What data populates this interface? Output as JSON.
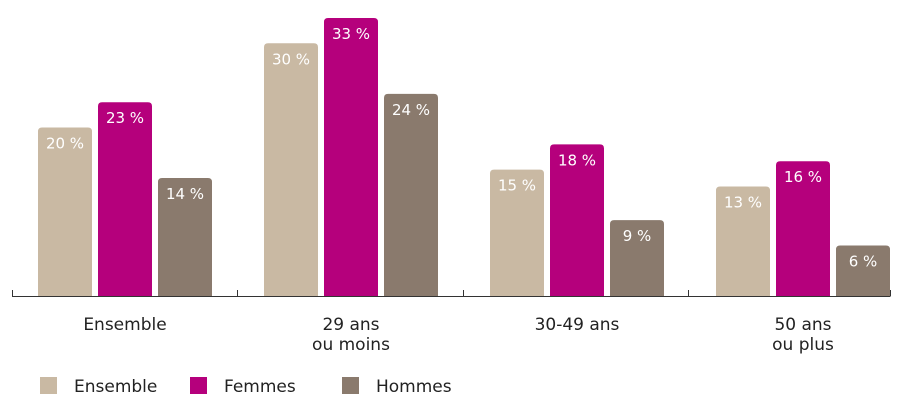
{
  "chart_data": {
    "type": "bar",
    "categories": [
      [
        "Ensemble"
      ],
      [
        "29 ans",
        "ou moins"
      ],
      [
        "30-49 ans"
      ],
      [
        "50 ans",
        "ou plus"
      ]
    ],
    "series": [
      {
        "name": "Ensemble",
        "color": "#c9b9a3",
        "values": [
          20,
          30,
          15,
          13
        ],
        "labels": [
          "20 %",
          "30 %",
          "15 %",
          "13 %"
        ]
      },
      {
        "name": "Femmes",
        "color": "#b5007c",
        "values": [
          23,
          33,
          18,
          16
        ],
        "labels": [
          "23 %",
          "33 %",
          "18 %",
          "16 %"
        ]
      },
      {
        "name": "Hommes",
        "color": "#8a7a6d",
        "values": [
          14,
          24,
          9,
          6
        ],
        "labels": [
          "14 %",
          "24 %",
          "9 %",
          "6 %"
        ]
      }
    ],
    "ylim": [
      0,
      33
    ],
    "grid": false,
    "legend_position": "bottom-left",
    "xlabel": "",
    "ylabel": "",
    "title": ""
  }
}
